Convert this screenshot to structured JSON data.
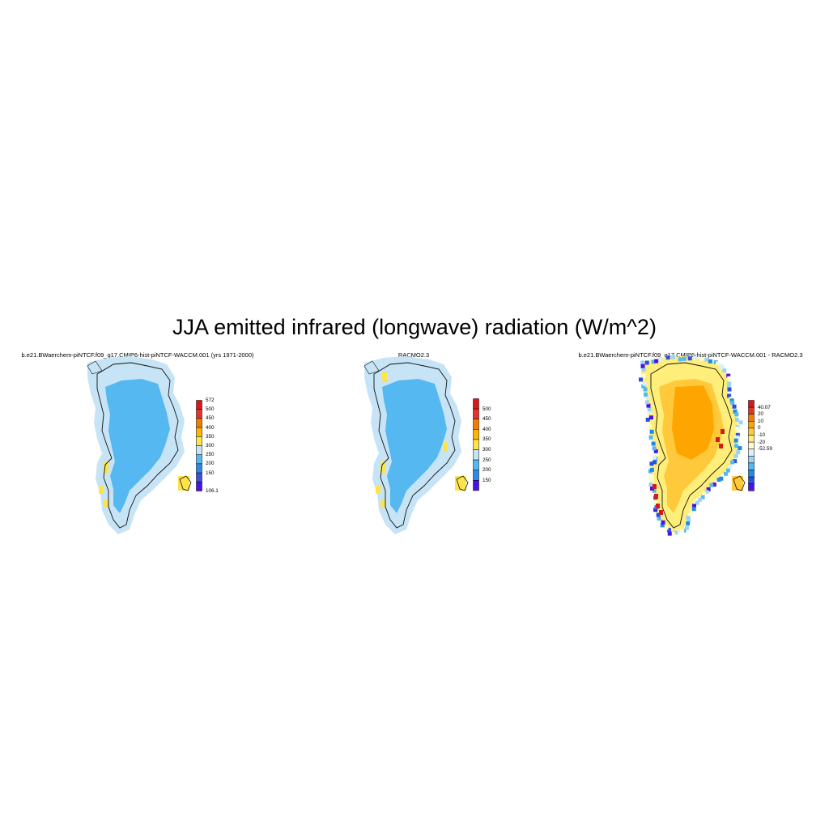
{
  "title": "JJA emitted infrared (longwave) radiation (W/m^2)",
  "panels": [
    {
      "id": "model",
      "title": "b.e21.BWaerchem-piNTCF.f09_g17.CMIP6-hist-piNTCF-WACCM.001 (yrs 1971-2000)",
      "colorbar": {
        "labels": [
          "572",
          "500",
          "450",
          "400",
          "350",
          "300",
          "250",
          "200",
          "150",
          "106.1"
        ],
        "colors": [
          "#d7191c",
          "#e3342a",
          "#f27d00",
          "#ffb400",
          "#fde449",
          "#c6e4f5",
          "#55b8f0",
          "#2a8ae6",
          "#3e4fe0",
          "#4814e6"
        ]
      }
    },
    {
      "id": "obs",
      "title": "RACMO2.3",
      "colorbar": {
        "labels": [
          "500",
          "450",
          "400",
          "350",
          "300",
          "250",
          "200",
          "150"
        ],
        "colors": [
          "#d7191c",
          "#e3342a",
          "#f27d00",
          "#ffb400",
          "#fde449",
          "#c6e4f5",
          "#55b8f0",
          "#2a8ae6",
          "#4814e6"
        ]
      }
    },
    {
      "id": "diff",
      "title": "b.e21.BWaerchem-piNTCF.f09_g17.CMIP6-hist-piNTCF-WACCM.001 - RACMO2.3",
      "colorbar": {
        "labels": [
          "40.07",
          "20",
          "10",
          "0",
          "-10",
          "-20",
          "-52.59"
        ],
        "colors": [
          "#d7191c",
          "#e3342a",
          "#f27d00",
          "#ffa500",
          "#ffc93b",
          "#ffef7a",
          "#fffbd0",
          "#dceefa",
          "#9bd3f5",
          "#55b8f0",
          "#1e8ce6",
          "#2a4fe6",
          "#4814e6"
        ]
      }
    }
  ]
}
